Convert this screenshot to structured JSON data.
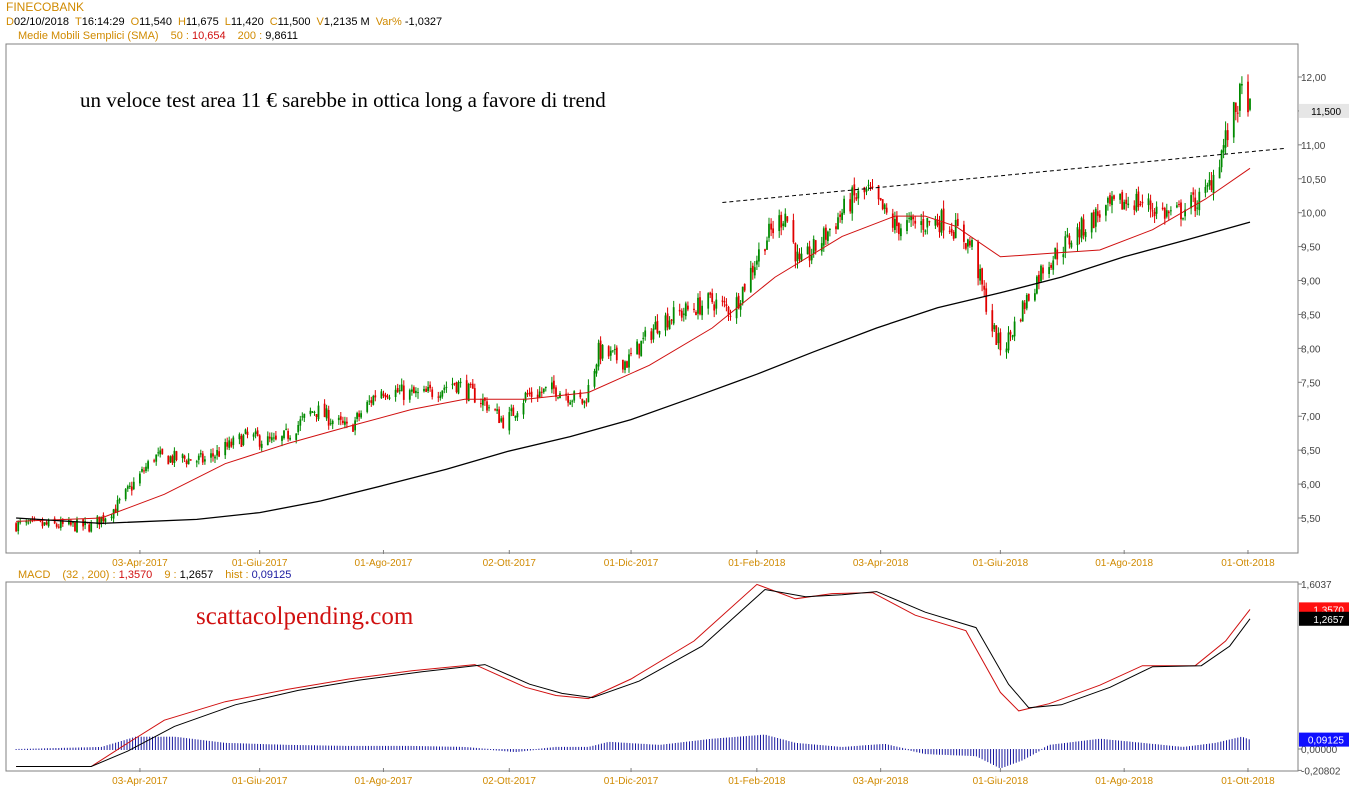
{
  "header": {
    "symbol": "FINECOBANK",
    "date_label": "D",
    "date": "02/10/2018",
    "time_label": "T",
    "time": "16:14:29",
    "open_label": "O",
    "open": "11,540",
    "high_label": "H",
    "high": "11,675",
    "low_label": "L",
    "low": "11,420",
    "close_label": "C",
    "close": "11,500",
    "volume_label": "V",
    "volume": "1,2135 M",
    "var_label": "Var%",
    "var": "-1,0327"
  },
  "sma": {
    "title": "Medie Mobili Semplici (SMA)",
    "p1_label": "50 :",
    "p1_value": "10,654",
    "p2_label": "200 :",
    "p2_value": "9,8611"
  },
  "macd": {
    "title": "MACD",
    "params": "(32 , 200) :",
    "macd_value": "1,3570",
    "signal_label": "9 :",
    "signal_value": "1,2657",
    "hist_label": "hist :",
    "hist_value": "0,09125"
  },
  "annotations": {
    "main": "un veloce test area 11 € sarebbe in ottica long a favore di trend",
    "site": "scattacolpending.com"
  },
  "colors": {
    "candle_up": "#008a00",
    "candle_down": "#e00000",
    "sma50": "#d01010",
    "sma200": "#000000",
    "macd_line": "#d01010",
    "signal_line": "#000000",
    "histogram": "#1a1aa0",
    "axis_label": "#d08a00"
  },
  "chart_data": [
    {
      "type": "candlestick",
      "title": "FINECOBANK",
      "x_ticks": [
        "03-Apr-2017",
        "01-Giu-2017",
        "01-Ago-2017",
        "02-Ott-2017",
        "01-Dic-2017",
        "01-Feb-2018",
        "03-Apr-2018",
        "01-Giu-2018",
        "01-Ago-2018",
        "01-Ott-2018"
      ],
      "y_ticks": [
        "5,50",
        "6,00",
        "6,50",
        "7,00",
        "7,50",
        "8,00",
        "8,50",
        "9,00",
        "9,50",
        "10,00",
        "10,50",
        "11,00",
        "11,50",
        "12,00"
      ],
      "ylim": [
        5.2,
        12.5
      ],
      "last_price": "11,500",
      "price_path": [
        [
          "2017-02-01",
          5.4
        ],
        [
          "2017-03-10",
          5.38
        ],
        [
          "2017-03-22",
          5.65
        ],
        [
          "2017-04-10",
          6.4
        ],
        [
          "2017-05-05",
          6.35
        ],
        [
          "2017-05-25",
          6.7
        ],
        [
          "2017-06-10",
          6.6
        ],
        [
          "2017-06-28",
          7.1
        ],
        [
          "2017-07-15",
          6.8
        ],
        [
          "2017-07-30",
          7.4
        ],
        [
          "2017-08-20",
          7.3
        ],
        [
          "2017-09-05",
          7.5
        ],
        [
          "2017-09-20",
          7.2
        ],
        [
          "2017-09-30",
          6.9
        ],
        [
          "2017-10-10",
          7.3
        ],
        [
          "2017-10-25",
          7.4
        ],
        [
          "2017-11-08",
          7.2
        ],
        [
          "2017-11-15",
          7.95
        ],
        [
          "2017-11-29",
          7.8
        ],
        [
          "2017-12-15",
          8.4
        ],
        [
          "2018-01-10",
          8.7
        ],
        [
          "2018-01-20",
          8.55
        ],
        [
          "2018-02-05",
          9.6
        ],
        [
          "2018-02-15",
          10.0
        ],
        [
          "2018-02-22",
          9.2
        ],
        [
          "2018-03-05",
          9.6
        ],
        [
          "2018-03-20",
          10.2
        ],
        [
          "2018-03-28",
          10.3
        ],
        [
          "2018-04-10",
          9.8
        ],
        [
          "2018-04-25",
          9.85
        ],
        [
          "2018-05-05",
          9.9
        ],
        [
          "2018-05-18",
          9.5
        ],
        [
          "2018-05-28",
          8.3
        ],
        [
          "2018-06-02",
          7.95
        ],
        [
          "2018-06-12",
          8.6
        ],
        [
          "2018-06-22",
          9.2
        ],
        [
          "2018-07-05",
          9.6
        ],
        [
          "2018-07-20",
          10.0
        ],
        [
          "2018-08-05",
          10.2
        ],
        [
          "2018-08-25",
          9.95
        ],
        [
          "2018-09-10",
          10.25
        ],
        [
          "2018-09-18",
          10.9
        ],
        [
          "2018-09-27",
          11.7
        ],
        [
          "2018-09-30",
          11.85
        ],
        [
          "2018-10-02",
          11.5
        ]
      ],
      "sma50_path": [
        [
          "2017-02-01",
          5.45
        ],
        [
          "2017-03-15",
          5.5
        ],
        [
          "2017-04-15",
          5.85
        ],
        [
          "2017-05-15",
          6.3
        ],
        [
          "2017-06-15",
          6.6
        ],
        [
          "2017-07-15",
          6.85
        ],
        [
          "2017-08-15",
          7.1
        ],
        [
          "2017-09-10",
          7.25
        ],
        [
          "2017-10-10",
          7.25
        ],
        [
          "2017-11-10",
          7.35
        ],
        [
          "2017-12-10",
          7.75
        ],
        [
          "2018-01-10",
          8.3
        ],
        [
          "2018-02-10",
          9.05
        ],
        [
          "2018-03-15",
          9.65
        ],
        [
          "2018-04-10",
          9.95
        ],
        [
          "2018-04-25",
          9.95
        ],
        [
          "2018-05-10",
          9.8
        ],
        [
          "2018-06-01",
          9.35
        ],
        [
          "2018-06-25",
          9.4
        ],
        [
          "2018-07-20",
          9.45
        ],
        [
          "2018-08-15",
          9.75
        ],
        [
          "2018-09-10",
          10.2
        ],
        [
          "2018-10-02",
          10.654
        ]
      ],
      "sma200_path": [
        [
          "2017-02-01",
          5.5
        ],
        [
          "2017-03-15",
          5.42
        ],
        [
          "2017-05-01",
          5.48
        ],
        [
          "2017-06-01",
          5.58
        ],
        [
          "2017-07-01",
          5.75
        ],
        [
          "2017-08-01",
          5.98
        ],
        [
          "2017-09-01",
          6.22
        ],
        [
          "2017-10-01",
          6.48
        ],
        [
          "2017-11-01",
          6.7
        ],
        [
          "2017-12-01",
          6.95
        ],
        [
          "2018-01-01",
          7.28
        ],
        [
          "2018-02-01",
          7.62
        ],
        [
          "2018-03-01",
          7.95
        ],
        [
          "2018-04-01",
          8.3
        ],
        [
          "2018-05-01",
          8.6
        ],
        [
          "2018-06-01",
          8.82
        ],
        [
          "2018-07-01",
          9.05
        ],
        [
          "2018-08-01",
          9.35
        ],
        [
          "2018-09-01",
          9.6
        ],
        [
          "2018-10-02",
          9.8611
        ]
      ],
      "trendline": [
        [
          "2018-01-15",
          10.15
        ],
        [
          "2018-10-20",
          10.95
        ]
      ]
    },
    {
      "type": "line",
      "title": "MACD",
      "y_ticks": [
        "1,6037",
        "0,00000",
        "-0,20802"
      ],
      "ylim": [
        -0.21,
        1.61
      ],
      "macd_value": "1,3570",
      "signal_value": "1,2657",
      "hist_value": "0,09125",
      "macd_path": [
        [
          "2017-02-01",
          -0.17
        ],
        [
          "2017-03-10",
          -0.17
        ],
        [
          "2017-03-25",
          0.02
        ],
        [
          "2017-04-15",
          0.28
        ],
        [
          "2017-05-15",
          0.46
        ],
        [
          "2017-06-15",
          0.58
        ],
        [
          "2017-07-15",
          0.68
        ],
        [
          "2017-08-15",
          0.76
        ],
        [
          "2017-09-15",
          0.82
        ],
        [
          "2017-10-10",
          0.6
        ],
        [
          "2017-10-25",
          0.52
        ],
        [
          "2017-11-10",
          0.49
        ],
        [
          "2017-12-01",
          0.68
        ],
        [
          "2018-01-01",
          1.05
        ],
        [
          "2018-02-01",
          1.6
        ],
        [
          "2018-02-20",
          1.46
        ],
        [
          "2018-03-10",
          1.51
        ],
        [
          "2018-03-30",
          1.52
        ],
        [
          "2018-04-20",
          1.3
        ],
        [
          "2018-05-15",
          1.15
        ],
        [
          "2018-06-01",
          0.55
        ],
        [
          "2018-06-10",
          0.37
        ],
        [
          "2018-06-25",
          0.44
        ],
        [
          "2018-07-20",
          0.62
        ],
        [
          "2018-08-10",
          0.81
        ],
        [
          "2018-09-05",
          0.81
        ],
        [
          "2018-09-20",
          1.05
        ],
        [
          "2018-10-02",
          1.357
        ]
      ],
      "signal_path": [
        [
          "2017-02-01",
          -0.17
        ],
        [
          "2017-03-10",
          -0.17
        ],
        [
          "2017-03-28",
          -0.02
        ],
        [
          "2017-04-20",
          0.22
        ],
        [
          "2017-05-20",
          0.43
        ],
        [
          "2017-06-20",
          0.57
        ],
        [
          "2017-07-20",
          0.67
        ],
        [
          "2017-08-20",
          0.75
        ],
        [
          "2017-09-20",
          0.82
        ],
        [
          "2017-10-12",
          0.63
        ],
        [
          "2017-10-28",
          0.54
        ],
        [
          "2017-11-12",
          0.5
        ],
        [
          "2017-12-05",
          0.66
        ],
        [
          "2018-01-05",
          1.0
        ],
        [
          "2018-02-05",
          1.55
        ],
        [
          "2018-02-25",
          1.48
        ],
        [
          "2018-03-15",
          1.5
        ],
        [
          "2018-04-01",
          1.53
        ],
        [
          "2018-04-25",
          1.33
        ],
        [
          "2018-05-20",
          1.18
        ],
        [
          "2018-06-05",
          0.63
        ],
        [
          "2018-06-15",
          0.4
        ],
        [
          "2018-07-01",
          0.43
        ],
        [
          "2018-07-25",
          0.6
        ],
        [
          "2018-08-15",
          0.8
        ],
        [
          "2018-09-08",
          0.81
        ],
        [
          "2018-09-22",
          1.0
        ],
        [
          "2018-10-02",
          1.2657
        ]
      ],
      "hist_path": [
        [
          "2017-02-01",
          0.0
        ],
        [
          "2017-03-15",
          0.02
        ],
        [
          "2017-04-01",
          0.12
        ],
        [
          "2017-04-20",
          0.12
        ],
        [
          "2017-05-15",
          0.06
        ],
        [
          "2017-06-15",
          0.04
        ],
        [
          "2017-07-15",
          0.03
        ],
        [
          "2017-08-15",
          0.03
        ],
        [
          "2017-09-10",
          0.02
        ],
        [
          "2017-10-05",
          -0.02
        ],
        [
          "2017-10-25",
          0.02
        ],
        [
          "2017-11-10",
          0.02
        ],
        [
          "2017-11-20",
          0.07
        ],
        [
          "2017-12-15",
          0.04
        ],
        [
          "2018-01-10",
          0.1
        ],
        [
          "2018-02-05",
          0.14
        ],
        [
          "2018-02-20",
          0.06
        ],
        [
          "2018-03-15",
          0.02
        ],
        [
          "2018-04-05",
          0.05
        ],
        [
          "2018-04-25",
          -0.04
        ],
        [
          "2018-05-20",
          -0.06
        ],
        [
          "2018-06-01",
          -0.18
        ],
        [
          "2018-06-12",
          -0.1
        ],
        [
          "2018-06-25",
          0.04
        ],
        [
          "2018-07-20",
          0.1
        ],
        [
          "2018-08-10",
          0.06
        ],
        [
          "2018-08-30",
          0.02
        ],
        [
          "2018-09-15",
          0.06
        ],
        [
          "2018-09-28",
          0.12
        ],
        [
          "2018-10-02",
          0.09125
        ]
      ]
    }
  ]
}
